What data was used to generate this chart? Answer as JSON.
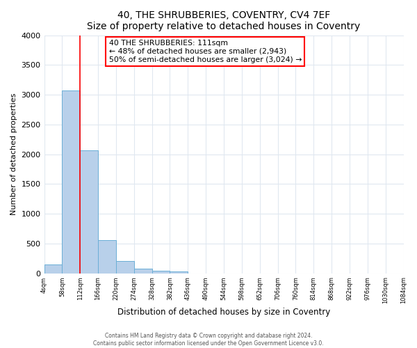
{
  "title": "40, THE SHRUBBERIES, COVENTRY, CV4 7EF",
  "subtitle": "Size of property relative to detached houses in Coventry",
  "xlabel": "Distribution of detached houses by size in Coventry",
  "ylabel": "Number of detached properties",
  "bin_edges": [
    4,
    58,
    112,
    166,
    220,
    274,
    328,
    382,
    436,
    490,
    544,
    598,
    652,
    706,
    760,
    814,
    868,
    922,
    976,
    1030,
    1084
  ],
  "bar_heights": [
    150,
    3070,
    2070,
    560,
    210,
    75,
    45,
    30,
    0,
    0,
    0,
    0,
    0,
    0,
    0,
    0,
    0,
    0,
    0,
    0
  ],
  "bar_color": "#b8d0ea",
  "bar_edge_color": "#6aaed6",
  "property_line_x": 111,
  "property_line_color": "red",
  "annotation_text": "40 THE SHRUBBERIES: 111sqm\n← 48% of detached houses are smaller (2,943)\n50% of semi-detached houses are larger (3,024) →",
  "annotation_box_color": "white",
  "annotation_box_edge_color": "red",
  "ylim": [
    0,
    4000
  ],
  "yticks": [
    0,
    500,
    1000,
    1500,
    2000,
    2500,
    3000,
    3500,
    4000
  ],
  "footer_line1": "Contains HM Land Registry data © Crown copyright and database right 2024.",
  "footer_line2": "Contains public sector information licensed under the Open Government Licence v3.0.",
  "bg_color": "#ffffff",
  "grid_color": "#e0e8f0"
}
